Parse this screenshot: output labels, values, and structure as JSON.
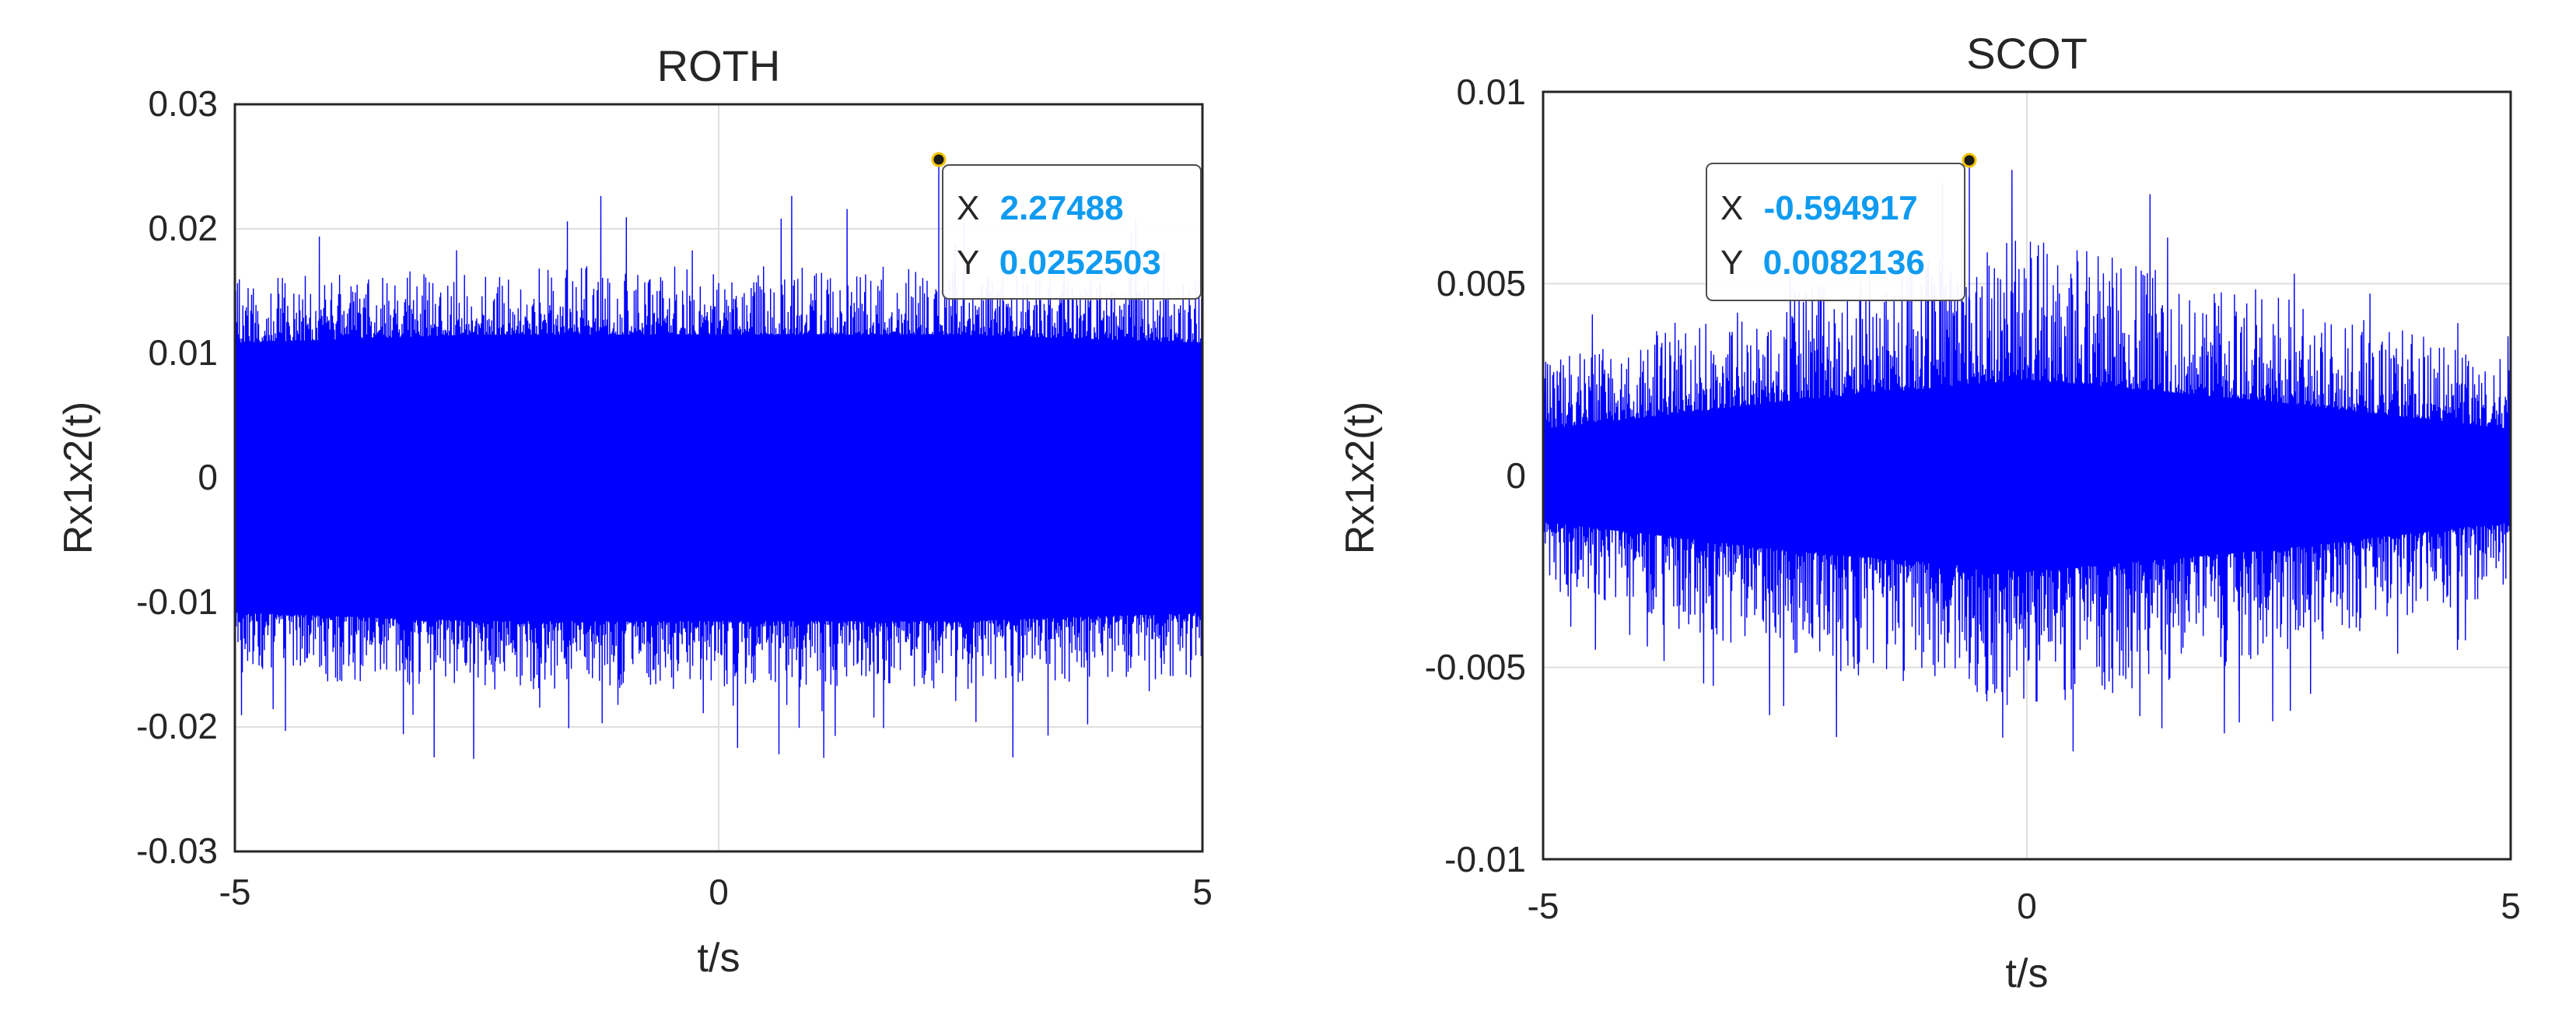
{
  "figure": {
    "background": "#ffffff",
    "signal_color": "#0000ff",
    "datatip_value_color": "#0f9bf0"
  },
  "chart_data": [
    {
      "type": "line",
      "title": "ROTH",
      "xlabel": "t/s",
      "ylabel": "Rx1x2(t)",
      "xlim": [
        -5,
        5
      ],
      "ylim": [
        -0.03,
        0.03
      ],
      "xticks": [
        "-5",
        "0",
        "5"
      ],
      "xtick_values": [
        -5,
        0,
        5
      ],
      "yticks": [
        "0.03",
        "0.02",
        "0.01",
        "0",
        "-0.01",
        "-0.02",
        "-0.03"
      ],
      "ytick_values": [
        0.03,
        0.02,
        0.01,
        0,
        -0.01,
        -0.02,
        -0.03
      ],
      "grid": true,
      "series": [
        {
          "color": "#0000ff",
          "description": "dense noise-like cross-correlation, roughly uniform amplitude",
          "envelope_x": [
            -5,
            -2.5,
            0,
            2.5,
            5
          ],
          "envelope_upper": [
            0.016,
            0.017,
            0.017,
            0.017,
            0.016
          ],
          "envelope_lower": [
            -0.016,
            -0.017,
            -0.017,
            -0.017,
            -0.016
          ],
          "dense_core": 0.0115,
          "peak": {
            "x": 2.27488,
            "y": 0.0252503
          }
        }
      ],
      "datatip": {
        "x_label": "X",
        "x_value": "2.27488",
        "y_label": "Y",
        "y_value": "0.0252503",
        "x": 2.27488,
        "y": 0.0252503
      }
    },
    {
      "type": "line",
      "title": "SCOT",
      "xlabel": "t/s",
      "ylabel": "Rx1x2(t)",
      "xlim": [
        -5,
        5
      ],
      "ylim": [
        -0.01,
        0.01
      ],
      "xticks": [
        "-5",
        "0",
        "5"
      ],
      "xtick_values": [
        -5,
        0,
        5
      ],
      "yticks": [
        "0.01",
        "0.005",
        "0",
        "-0.005",
        "-0.01"
      ],
      "ytick_values": [
        0.01,
        0.005,
        0,
        -0.005,
        -0.01
      ],
      "grid": true,
      "series": [
        {
          "color": "#0000ff",
          "description": "dense noise-like cross-correlation, spindle-shaped envelope peaking near t=0",
          "envelope_x": [
            -5,
            -2.5,
            0,
            2.5,
            5
          ],
          "envelope_upper": [
            0.003,
            0.0048,
            0.0062,
            0.0048,
            0.003
          ],
          "envelope_lower": [
            -0.003,
            -0.0048,
            -0.0062,
            -0.0048,
            -0.003
          ],
          "dense_core": 0.0025,
          "peak": {
            "x": -0.594917,
            "y": 0.0082136
          }
        }
      ],
      "datatip": {
        "x_label": "X",
        "x_value": "-0.594917",
        "y_label": "Y",
        "y_value": "0.0082136",
        "x": -0.594917,
        "y": 0.0082136
      }
    }
  ]
}
